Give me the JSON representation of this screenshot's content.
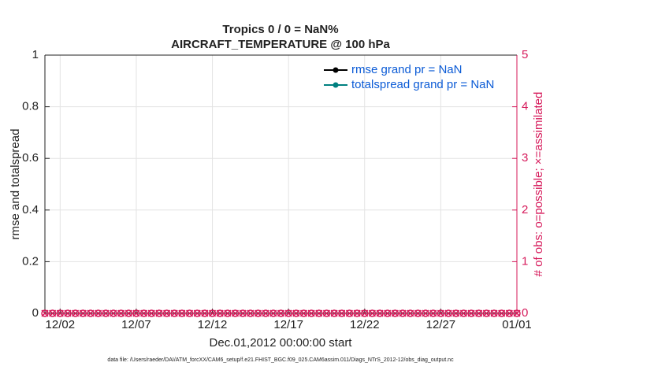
{
  "chart_data": {
    "type": "line",
    "title": "Tropics 0 / 0 = NaN%",
    "subtitle": "AIRCRAFT_TEMPERATURE @ 100 hPa",
    "xlabel": "Dec.01,2012 00:00:00 start",
    "ylabel": "rmse and totalspread",
    "y2label": "# of obs: o=possible; ×=assimilated",
    "footnote": "data file: /Users/raeder/DAI/ATM_forcXX/CAM6_setup/f.e21.FHIST_BGC.f09_025.CAM6assim.011/Diags_NTrS_2012-12/obs_diag_output.nc",
    "x": [
      0,
      0.5,
      1,
      1.5,
      2,
      2.5,
      3,
      3.5,
      4,
      4.5,
      5,
      5.5,
      6,
      6.5,
      7,
      7.5,
      8,
      8.5,
      9,
      9.5,
      10,
      10.5,
      11,
      11.5,
      12,
      12.5,
      13,
      13.5,
      14,
      14.5,
      15,
      15.5,
      16,
      16.5,
      17,
      17.5,
      18,
      18.5,
      19,
      19.5,
      20,
      20.5,
      21,
      21.5,
      22,
      22.5,
      23,
      23.5,
      24,
      24.5,
      25,
      25.5,
      26,
      26.5,
      27,
      27.5,
      28,
      28.5,
      29,
      29.5,
      30,
      30.5,
      31
    ],
    "series": [
      {
        "name": "rmse grand pr = NaN",
        "color": "#000000",
        "marker": "dot",
        "values": [
          null,
          null,
          null,
          null,
          null,
          null,
          null,
          null,
          null,
          null,
          null,
          null,
          null,
          null,
          null,
          null,
          null,
          null,
          null,
          null,
          null,
          null,
          null,
          null,
          null,
          null,
          null,
          null,
          null,
          null,
          null,
          null,
          null,
          null,
          null,
          null,
          null,
          null,
          null,
          null,
          null,
          null,
          null,
          null,
          null,
          null,
          null,
          null,
          null,
          null,
          null,
          null,
          null,
          null,
          null,
          null,
          null,
          null,
          null,
          null,
          null,
          null,
          null
        ]
      },
      {
        "name": "totalspread grand pr = NaN",
        "color": "#008080",
        "marker": "dot",
        "values": [
          null,
          null,
          null,
          null,
          null,
          null,
          null,
          null,
          null,
          null,
          null,
          null,
          null,
          null,
          null,
          null,
          null,
          null,
          null,
          null,
          null,
          null,
          null,
          null,
          null,
          null,
          null,
          null,
          null,
          null,
          null,
          null,
          null,
          null,
          null,
          null,
          null,
          null,
          null,
          null,
          null,
          null,
          null,
          null,
          null,
          null,
          null,
          null,
          null,
          null,
          null,
          null,
          null,
          null,
          null,
          null,
          null,
          null,
          null,
          null,
          null,
          null,
          null
        ]
      },
      {
        "color": "#d6195a",
        "marker": "circle",
        "axis": "y2",
        "values": [
          0,
          0,
          0,
          0,
          0,
          0,
          0,
          0,
          0,
          0,
          0,
          0,
          0,
          0,
          0,
          0,
          0,
          0,
          0,
          0,
          0,
          0,
          0,
          0,
          0,
          0,
          0,
          0,
          0,
          0,
          0,
          0,
          0,
          0,
          0,
          0,
          0,
          0,
          0,
          0,
          0,
          0,
          0,
          0,
          0,
          0,
          0,
          0,
          0,
          0,
          0,
          0,
          0,
          0,
          0,
          0,
          0,
          0,
          0,
          0,
          0,
          0,
          0
        ]
      },
      {
        "color": "#d6195a",
        "marker": "cross",
        "axis": "y2",
        "values": [
          0,
          0,
          0,
          0,
          0,
          0,
          0,
          0,
          0,
          0,
          0,
          0,
          0,
          0,
          0,
          0,
          0,
          0,
          0,
          0,
          0,
          0,
          0,
          0,
          0,
          0,
          0,
          0,
          0,
          0,
          0,
          0,
          0,
          0,
          0,
          0,
          0,
          0,
          0,
          0,
          0,
          0,
          0,
          0,
          0,
          0,
          0,
          0,
          0,
          0,
          0,
          0,
          0,
          0,
          0,
          0,
          0,
          0,
          0,
          0,
          0,
          0,
          0
        ]
      }
    ],
    "legend_text_color": "#0b5bd6",
    "y2color": "#d6195a",
    "xlim": [
      0,
      31
    ],
    "xticks": [
      {
        "value": 1,
        "label": "12/02"
      },
      {
        "value": 6,
        "label": "12/07"
      },
      {
        "value": 11,
        "label": "12/12"
      },
      {
        "value": 16,
        "label": "12/17"
      },
      {
        "value": 21,
        "label": "12/22"
      },
      {
        "value": 26,
        "label": "12/27"
      },
      {
        "value": 31,
        "label": "01/01"
      }
    ],
    "ylim": [
      0,
      1
    ],
    "yticks": [
      0,
      0.2,
      0.4,
      0.6,
      0.8,
      1
    ],
    "y2lim": [
      0,
      5
    ],
    "y2ticks": [
      0,
      1,
      2,
      3,
      4,
      5
    ],
    "grid": true,
    "legend": "upper right"
  }
}
